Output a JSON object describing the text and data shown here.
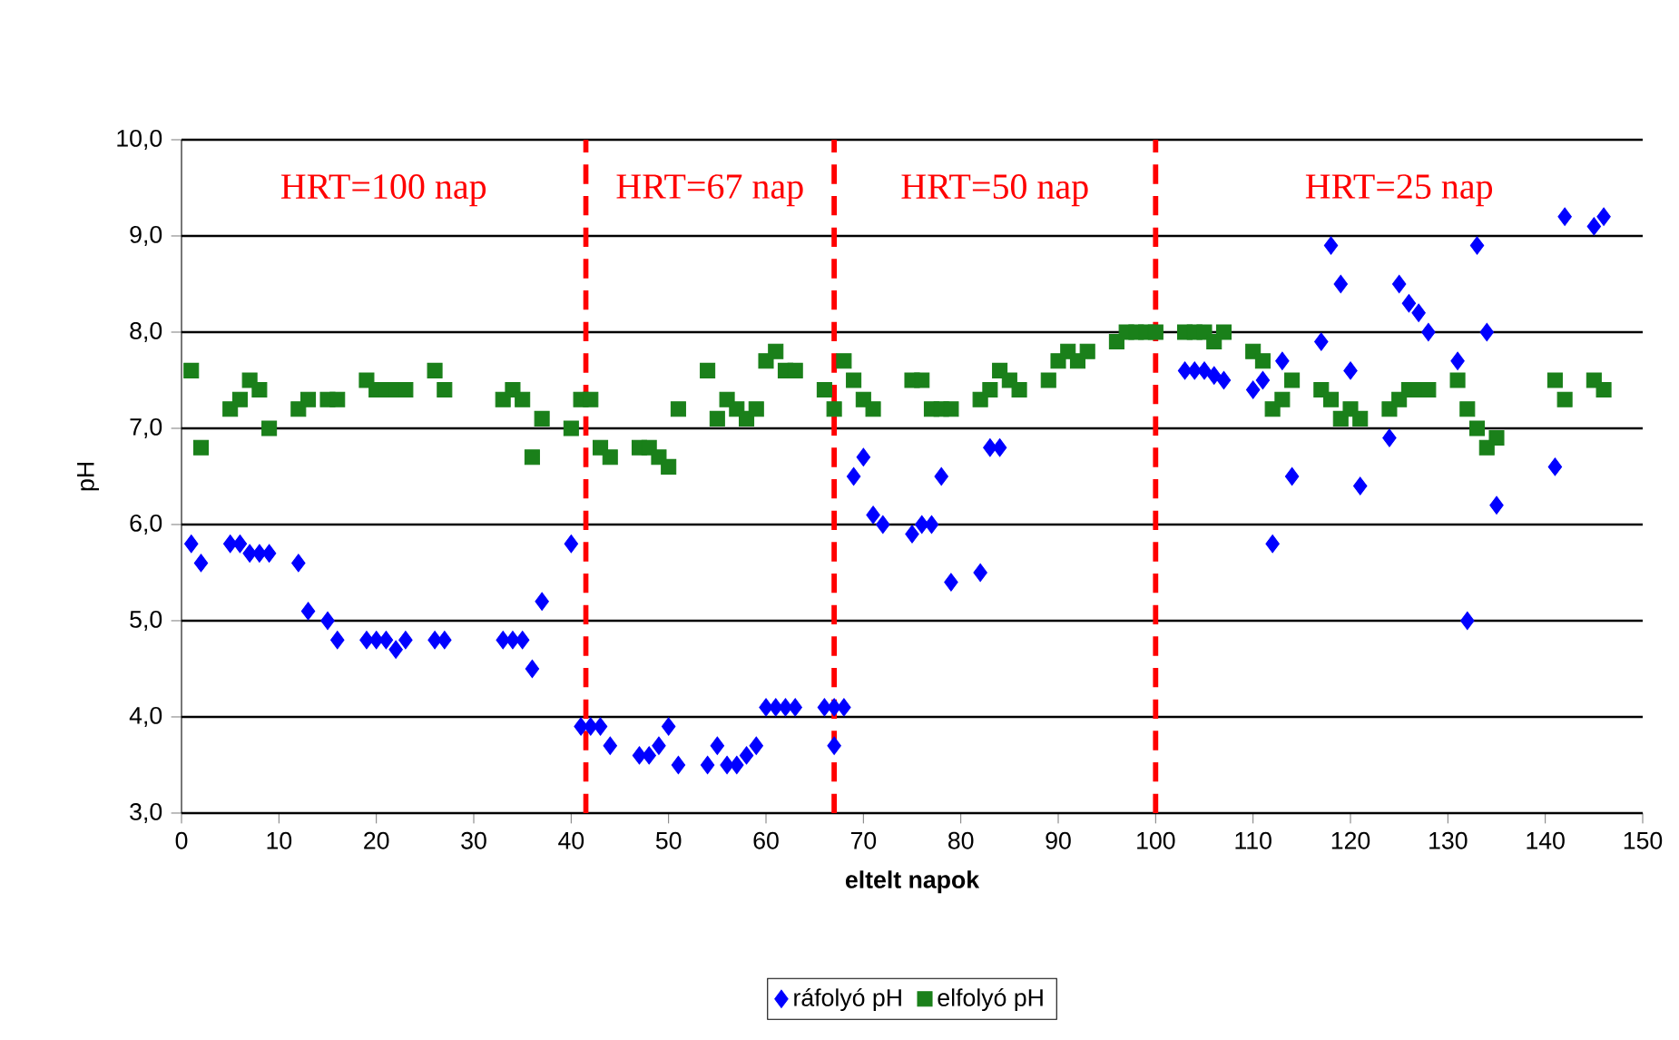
{
  "chart_data": {
    "type": "scatter",
    "xlabel": "eltelt napok",
    "ylabel": "pH",
    "xlim": [
      0,
      150
    ],
    "xticks": [
      0,
      10,
      20,
      30,
      40,
      50,
      60,
      70,
      80,
      90,
      100,
      110,
      120,
      130,
      140,
      150
    ],
    "ylim": [
      3,
      10
    ],
    "yticks": [
      {
        "value": 3,
        "label": "3,0"
      },
      {
        "value": 4,
        "label": "4,0"
      },
      {
        "value": 5,
        "label": "5,0"
      },
      {
        "value": 6,
        "label": "6,0"
      },
      {
        "value": 7,
        "label": "7,0"
      },
      {
        "value": 8,
        "label": "8,0"
      },
      {
        "value": 9,
        "label": "9,0"
      },
      {
        "value": 10,
        "label": "10,0"
      }
    ],
    "grid": "y",
    "legend": "bottom",
    "series": [
      {
        "name": "ráfolyó pH",
        "color": "#0000ff",
        "marker": "diamond",
        "x": [
          1,
          2,
          5,
          6,
          7,
          8,
          9,
          12,
          13,
          15,
          16,
          19,
          20,
          21,
          22,
          23,
          26,
          27,
          33,
          34,
          35,
          36,
          37,
          40,
          41,
          42,
          43,
          44,
          47,
          48,
          49,
          50,
          51,
          54,
          55,
          56,
          57,
          58,
          59,
          60,
          61,
          62,
          63,
          66,
          67,
          67,
          68,
          69,
          70,
          71,
          72,
          75,
          76,
          77,
          78,
          79,
          82,
          83,
          84,
          103,
          104,
          105,
          106,
          107,
          110,
          111,
          112,
          113,
          114,
          117,
          118,
          119,
          120,
          121,
          124,
          125,
          126,
          127,
          128,
          131,
          132,
          133,
          134,
          135,
          141,
          142,
          145,
          146
        ],
        "values": [
          5.8,
          5.6,
          5.8,
          5.8,
          5.7,
          5.7,
          5.7,
          5.6,
          5.1,
          5.0,
          4.8,
          4.8,
          4.8,
          4.8,
          4.7,
          4.8,
          4.8,
          4.8,
          4.8,
          4.8,
          4.8,
          4.5,
          5.2,
          5.8,
          3.9,
          3.9,
          3.9,
          3.7,
          3.6,
          3.6,
          3.7,
          3.9,
          3.5,
          3.5,
          3.7,
          3.5,
          3.5,
          3.6,
          3.7,
          4.1,
          4.1,
          4.1,
          4.1,
          4.1,
          3.7,
          4.1,
          4.1,
          6.5,
          6.7,
          6.1,
          6.0,
          5.9,
          6.0,
          6.0,
          6.5,
          5.4,
          5.5,
          6.8,
          6.8,
          7.6,
          7.6,
          7.6,
          7.55,
          7.5,
          7.4,
          7.5,
          5.8,
          7.7,
          6.5,
          7.9,
          8.9,
          8.5,
          7.6,
          6.4,
          6.9,
          8.5,
          8.3,
          8.2,
          8.0,
          7.7,
          5.0,
          8.9,
          8.0,
          6.2,
          6.6,
          9.2,
          9.1,
          9.2
        ]
      },
      {
        "name": "elfolyó pH",
        "color": "#1a801a",
        "marker": "square",
        "x": [
          1,
          2,
          5,
          6,
          7,
          8,
          9,
          12,
          13,
          15,
          16,
          19,
          20,
          21,
          22,
          23,
          26,
          27,
          33,
          34,
          35,
          36,
          37,
          40,
          41,
          42,
          43,
          44,
          47,
          48,
          49,
          50,
          51,
          54,
          55,
          56,
          57,
          58,
          59,
          60,
          61,
          62,
          63,
          66,
          67,
          68,
          69,
          70,
          71,
          75,
          76,
          77,
          78,
          79,
          82,
          83,
          84,
          85,
          86,
          89,
          90,
          91,
          92,
          93,
          96,
          97,
          98,
          99,
          100,
          103,
          104,
          105,
          106,
          107,
          110,
          111,
          112,
          113,
          114,
          117,
          118,
          119,
          120,
          121,
          124,
          125,
          126,
          127,
          128,
          131,
          132,
          133,
          134,
          135,
          141,
          142,
          145,
          146
        ],
        "values": [
          7.6,
          6.8,
          7.2,
          7.3,
          7.5,
          7.4,
          7.0,
          7.2,
          7.3,
          7.3,
          7.3,
          7.5,
          7.4,
          7.4,
          7.4,
          7.4,
          7.6,
          7.4,
          7.3,
          7.4,
          7.3,
          6.7,
          7.1,
          7.0,
          7.3,
          7.3,
          6.8,
          6.7,
          6.8,
          6.8,
          6.7,
          6.6,
          7.2,
          7.6,
          7.1,
          7.3,
          7.2,
          7.1,
          7.2,
          7.7,
          7.8,
          7.6,
          7.6,
          7.4,
          7.2,
          7.7,
          7.5,
          7.3,
          7.2,
          7.5,
          7.5,
          7.2,
          7.2,
          7.2,
          7.3,
          7.4,
          7.6,
          7.5,
          7.4,
          7.5,
          7.7,
          7.8,
          7.7,
          7.8,
          7.9,
          8.0,
          8.0,
          8.0,
          8.0,
          8.0,
          8.0,
          8.0,
          7.9,
          8.0,
          7.8,
          7.7,
          7.2,
          7.3,
          7.5,
          7.4,
          7.3,
          7.1,
          7.2,
          7.1,
          7.2,
          7.3,
          7.4,
          7.4,
          7.4,
          7.5,
          7.2,
          7.0,
          6.8,
          6.9,
          7.5,
          7.3,
          7.5,
          7.4
        ]
      }
    ],
    "ref_lines": [
      {
        "axis": "x",
        "value": 41.5,
        "color": "#ff0000",
        "line_style": "dashed"
      },
      {
        "axis": "x",
        "value": 67,
        "color": "#ff0000",
        "line_style": "dashed"
      },
      {
        "axis": "x",
        "value": 100,
        "color": "#ff0000",
        "line_style": "dashed"
      }
    ],
    "annotations": [
      "HRT=100 nap",
      "HRT=67 nap",
      "HRT=50 nap",
      "HRT=25 nap"
    ]
  }
}
